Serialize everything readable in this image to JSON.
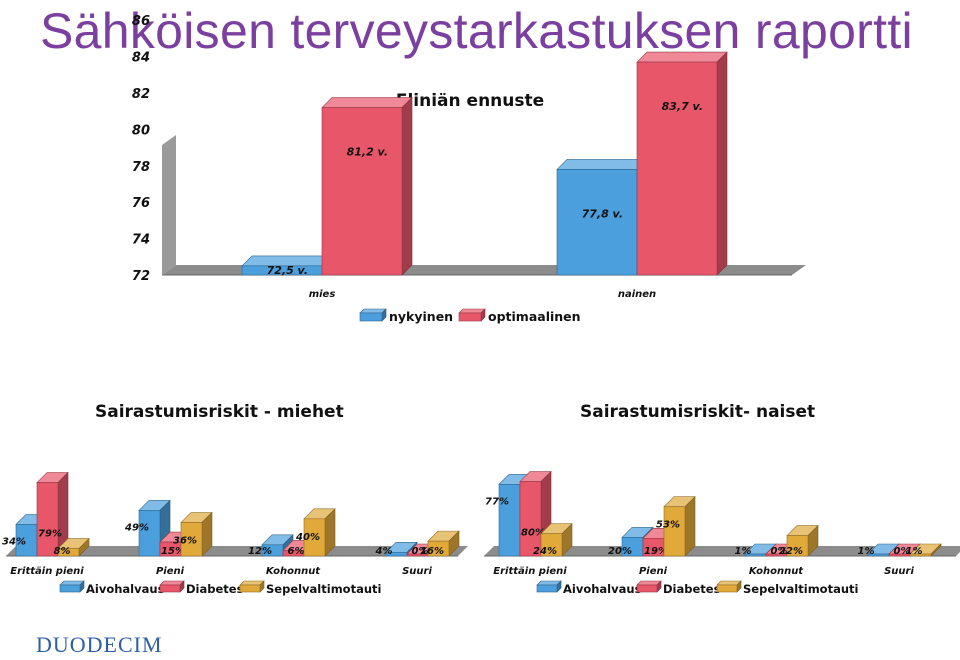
{
  "page": {
    "title": "Sähköisen terveystarkastuksen raportti",
    "logo_text": "DUODECIM"
  },
  "colors": {
    "blue": "#4a9fdc",
    "red": "#e8566a",
    "gold": "#e0a93a",
    "floor": "#8c8c8c",
    "title": "#7b3fa0",
    "logo": "#2f5fa3"
  },
  "chart_data": [
    {
      "type": "bar",
      "title": "Eliniän ennuste",
      "categories": [
        "mies",
        "nainen"
      ],
      "yticks": [
        72,
        74,
        76,
        78,
        80,
        82,
        84,
        86
      ],
      "ylim": [
        72,
        86
      ],
      "legend_position": "bottom",
      "series": [
        {
          "name": "nykyinen",
          "values": [
            72.5,
            77.8
          ],
          "labels": [
            "72,5 v.",
            "77,8 v."
          ]
        },
        {
          "name": "optimaalinen",
          "values": [
            81.2,
            83.7
          ],
          "labels": [
            "81,2 v.",
            "83,7 v."
          ]
        }
      ]
    },
    {
      "type": "bar",
      "title": "Sairastumisriskit - miehet",
      "categories": [
        "Erittäin pieni",
        "Pieni",
        "Kohonnut",
        "Suuri"
      ],
      "legend_position": "bottom",
      "series": [
        {
          "name": "Aivohalvaus",
          "values": [
            34,
            49,
            12,
            4
          ],
          "labels": [
            "34%",
            "49%",
            "12%",
            "4%"
          ]
        },
        {
          "name": "Diabetes",
          "values": [
            79,
            15,
            6,
            0
          ],
          "labels": [
            "79%",
            "15%",
            "6%",
            "0%"
          ]
        },
        {
          "name": "Sepelvaltimotauti",
          "values": [
            8,
            36,
            40,
            16
          ],
          "labels": [
            "8%",
            "36%",
            "40%",
            "16%"
          ]
        }
      ]
    },
    {
      "type": "bar",
      "title": "Sairastumisriskit- naiset",
      "categories": [
        "Erittäin pieni",
        "Pieni",
        "Kohonnut",
        "Suuri"
      ],
      "legend_position": "bottom",
      "series": [
        {
          "name": "Aivohalvaus",
          "values": [
            77,
            20,
            1,
            1
          ],
          "labels": [
            "77%",
            "20%",
            "1%",
            "1%"
          ]
        },
        {
          "name": "Diabetes",
          "values": [
            80,
            19,
            0,
            0
          ],
          "labels": [
            "80%",
            "19%",
            "0%",
            "0%"
          ]
        },
        {
          "name": "Sepelvaltimotauti",
          "values": [
            24,
            53,
            22,
            1
          ],
          "labels": [
            "24%",
            "53%",
            "22%",
            "1%"
          ]
        }
      ]
    }
  ]
}
